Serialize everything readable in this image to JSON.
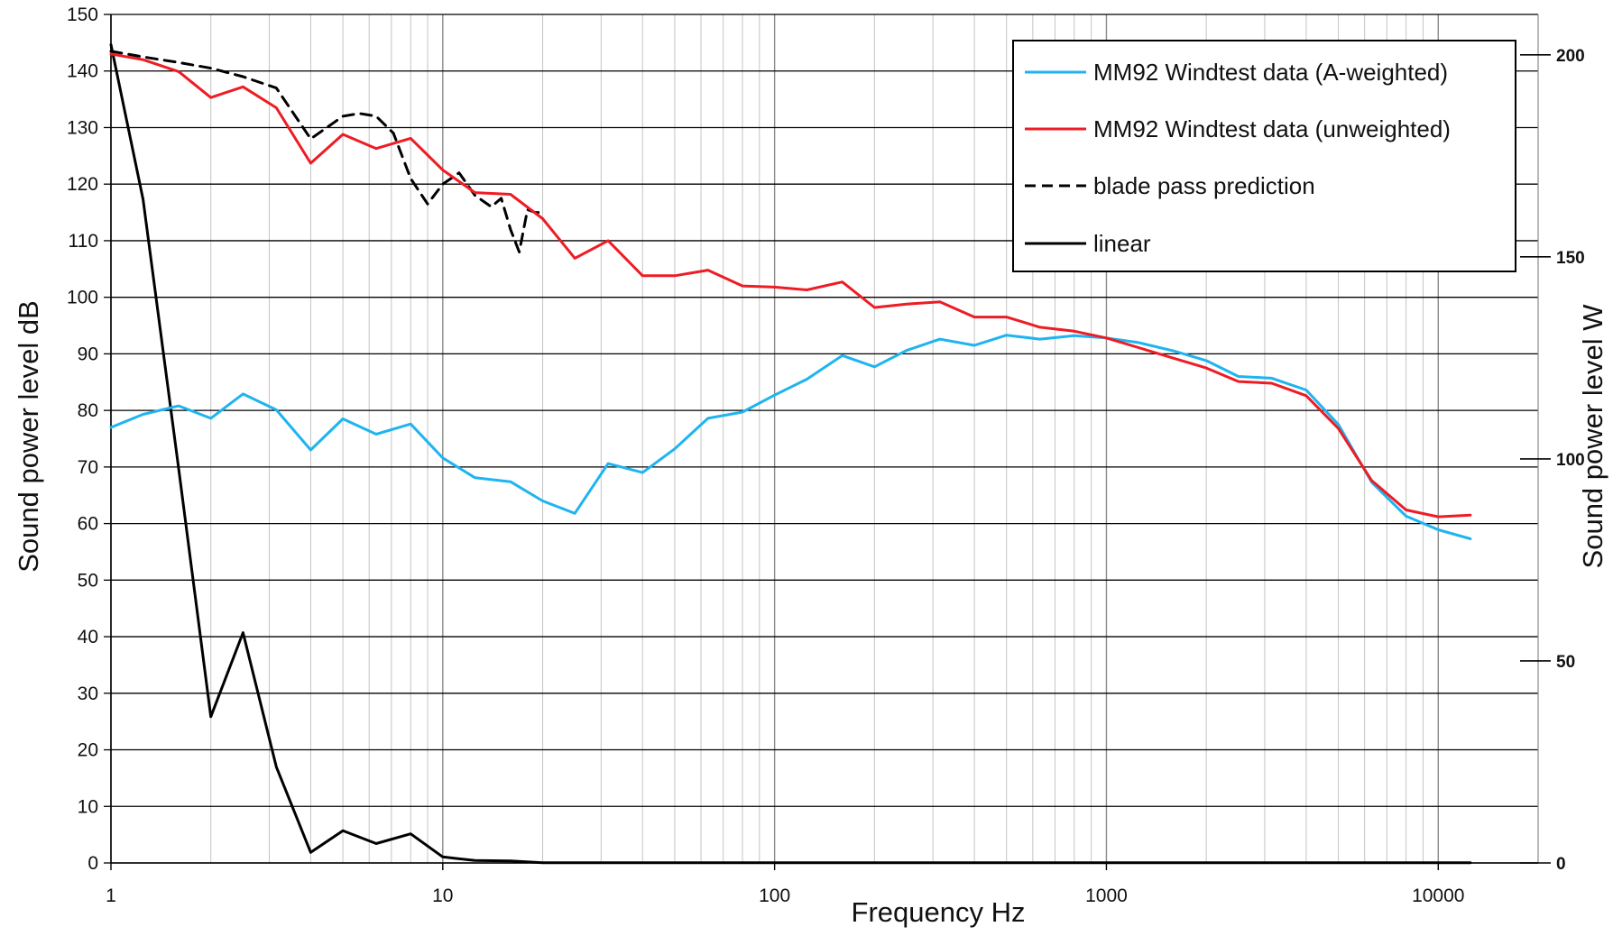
{
  "chart_data": {
    "type": "line",
    "xlabel": "Frequency Hz",
    "ylabel": "Sound power level dB",
    "y2label": "Sound power level W",
    "xscale": "log",
    "xlim": [
      1,
      20000
    ],
    "ylim": [
      0,
      150
    ],
    "y2lim": [
      0,
      210
    ],
    "grid": true,
    "legend_position": "top-right",
    "x_ticks": [
      "1",
      "10",
      "100",
      "1000",
      "10000"
    ],
    "x_tick_values": [
      1,
      10,
      100,
      1000,
      10000
    ],
    "y_ticks": [
      "0",
      "10",
      "20",
      "30",
      "40",
      "50",
      "60",
      "70",
      "80",
      "90",
      "100",
      "110",
      "120",
      "130",
      "140",
      "150"
    ],
    "y_tick_values": [
      0,
      10,
      20,
      30,
      40,
      50,
      60,
      70,
      80,
      90,
      100,
      110,
      120,
      130,
      140,
      150
    ],
    "y2_ticks": [
      "0",
      "50",
      "100",
      "150",
      "200"
    ],
    "y2_tick_values": [
      0,
      50,
      100,
      150,
      200
    ],
    "series": [
      {
        "name": "MM92 Windtest data (A-weighted)",
        "color": "#1fb4f0",
        "dash": "solid",
        "axis": "left",
        "x": [
          1,
          1.25,
          1.6,
          2,
          2.5,
          3.15,
          4,
          5,
          6.3,
          8,
          10,
          12.5,
          16,
          20,
          25,
          31.5,
          40,
          50,
          63,
          80,
          100,
          125,
          160,
          200,
          250,
          315,
          400,
          500,
          630,
          800,
          1000,
          1250,
          1600,
          2000,
          2500,
          3150,
          4000,
          5000,
          6300,
          8000,
          10000,
          12500
        ],
        "values": [
          77,
          79.3,
          80.8,
          78.6,
          82.9,
          80.1,
          73,
          78.5,
          75.8,
          77.6,
          71.6,
          68.1,
          67.4,
          64,
          61.8,
          70.6,
          69,
          73.2,
          78.6,
          79.7,
          82.7,
          85.5,
          89.7,
          87.7,
          90.6,
          92.6,
          91.5,
          93.3,
          92.6,
          93.2,
          92.8,
          92,
          90.5,
          88.8,
          86,
          85.7,
          83.6,
          77.5,
          67.3,
          61.3,
          58.9,
          57.3
        ]
      },
      {
        "name": "MM92 Windtest data (unweighted)",
        "color": "#ee1c24",
        "dash": "solid",
        "axis": "left",
        "x": [
          1,
          1.25,
          1.6,
          2,
          2.5,
          3.15,
          4,
          5,
          6.3,
          8,
          10,
          12.5,
          16,
          20,
          25,
          31.5,
          40,
          50,
          63,
          80,
          100,
          125,
          160,
          200,
          250,
          315,
          400,
          500,
          630,
          800,
          1000,
          1250,
          1600,
          2000,
          2500,
          3150,
          4000,
          5000,
          6300,
          8000,
          10000,
          12500
        ],
        "values": [
          143,
          142,
          139.9,
          135.3,
          137.2,
          133.5,
          123.7,
          128.8,
          126.3,
          128.1,
          122.5,
          118.5,
          118.2,
          113.9,
          106.9,
          110,
          103.8,
          103.8,
          104.8,
          102,
          101.8,
          101.3,
          102.7,
          98.2,
          98.8,
          99.2,
          96.5,
          96.5,
          94.7,
          94,
          92.8,
          91.1,
          89.2,
          87.5,
          85.1,
          84.8,
          82.6,
          76.8,
          67.6,
          62.4,
          61.2,
          61.5
        ]
      },
      {
        "name": "blade pass prediction",
        "color": "#000000",
        "dash": "dashed",
        "axis": "left",
        "x": [
          1,
          1.25,
          1.6,
          2,
          2.5,
          3.15,
          4,
          5,
          5.6,
          6.3,
          7.1,
          8,
          9,
          10,
          11.2,
          12.5,
          14,
          15,
          16,
          17,
          18,
          19,
          20
        ],
        "values": [
          143.5,
          142.5,
          141.5,
          140.5,
          139,
          137,
          128,
          132,
          132.5,
          132,
          129,
          121,
          116.5,
          120,
          122,
          118,
          116,
          117.5,
          112,
          108,
          115.5,
          115,
          115
        ]
      },
      {
        "name": "linear",
        "color": "#000000",
        "dash": "solid",
        "axis": "right",
        "x": [
          1,
          1.25,
          1.6,
          2,
          2.5,
          3.15,
          4,
          5,
          6.3,
          8,
          10,
          12.5,
          16,
          20,
          25,
          31.5,
          40,
          50,
          63,
          80,
          100,
          125,
          160,
          200,
          250,
          315,
          400,
          500,
          630,
          800,
          1000,
          1250,
          1600,
          2000,
          2500,
          3150,
          4000,
          5000,
          6300,
          8000,
          10000,
          12500
        ],
        "values": [
          202.5,
          164.2,
          97.5,
          36.2,
          57,
          23.8,
          2.6,
          8,
          4.8,
          7.2,
          1.5,
          0.6,
          0.5,
          0.05,
          0.05,
          0.05,
          0.05,
          0.05,
          0.05,
          0.05,
          0.05,
          0.05,
          0.05,
          0.05,
          0.05,
          0.05,
          0.05,
          0.05,
          0.05,
          0.05,
          0.05,
          0.05,
          0.05,
          0.05,
          0.05,
          0.05,
          0.05,
          0.05,
          0.05,
          0.05,
          0.05,
          0.05
        ]
      }
    ]
  }
}
